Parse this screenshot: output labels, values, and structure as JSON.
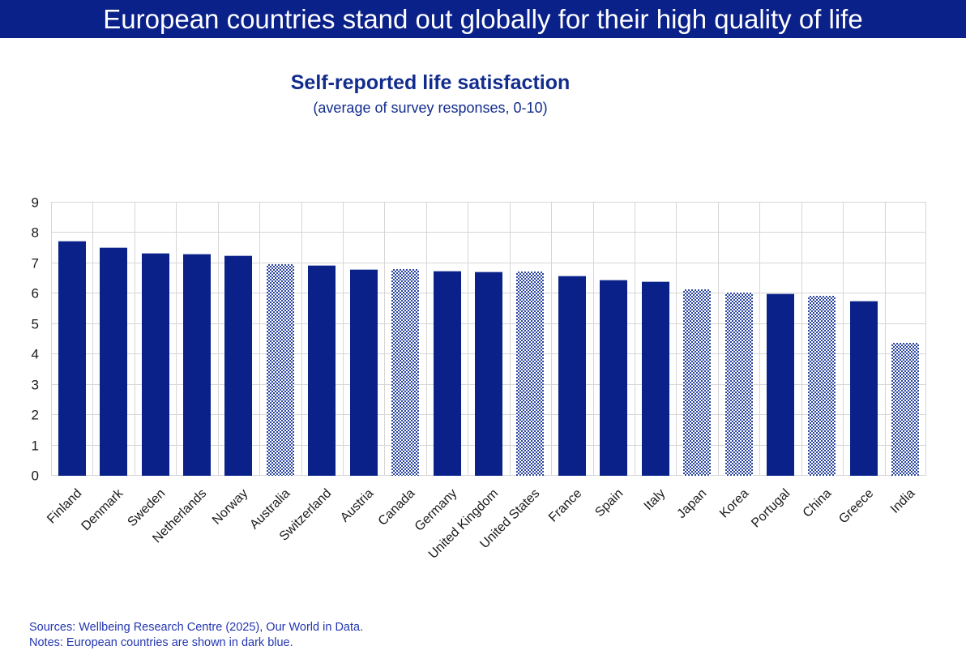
{
  "banner": {
    "title": "European countries stand out globally for their high quality of life",
    "bg_color": "#0a2189",
    "text_color": "#ffffff"
  },
  "chart": {
    "title": "Self-reported life satisfaction",
    "subtitle": "(average of survey responses, 0-10)",
    "title_color": "#122c8e"
  },
  "chart_data": {
    "type": "bar",
    "title": "Self-reported life satisfaction",
    "subtitle": "(average of survey responses, 0-10)",
    "categories": [
      "Finland",
      "Denmark",
      "Sweden",
      "Netherlands",
      "Norway",
      "Australia",
      "Switzerland",
      "Austria",
      "Canada",
      "Germany",
      "United Kingdom",
      "United States",
      "France",
      "Spain",
      "Italy",
      "Japan",
      "Korea",
      "Portugal",
      "China",
      "Greece",
      "India"
    ],
    "values": [
      7.74,
      7.52,
      7.35,
      7.31,
      7.26,
      6.97,
      6.94,
      6.81,
      6.8,
      6.75,
      6.73,
      6.72,
      6.59,
      6.47,
      6.42,
      6.15,
      6.04,
      6.01,
      5.92,
      5.78,
      4.39
    ],
    "european": [
      true,
      true,
      true,
      true,
      true,
      false,
      true,
      true,
      false,
      true,
      true,
      false,
      true,
      true,
      true,
      false,
      false,
      true,
      false,
      true,
      false
    ],
    "xlabel": "",
    "ylabel": "",
    "ylim": [
      0,
      9
    ],
    "yticks": [
      0,
      1,
      2,
      3,
      4,
      5,
      6,
      7,
      8,
      9
    ],
    "grid": true,
    "legend_position": "none",
    "colors": {
      "european_solid": "#0a2189",
      "non_european_pattern": "#2a44a0",
      "gridline": "#d6d6d6"
    },
    "style_note": "European countries solid dark blue; non-European countries dotted checker pattern"
  },
  "footer": {
    "sources": "Sources: Wellbeing Research Centre (2025), Our World in Data.",
    "notes": "Notes: European countries are shown in dark blue."
  }
}
